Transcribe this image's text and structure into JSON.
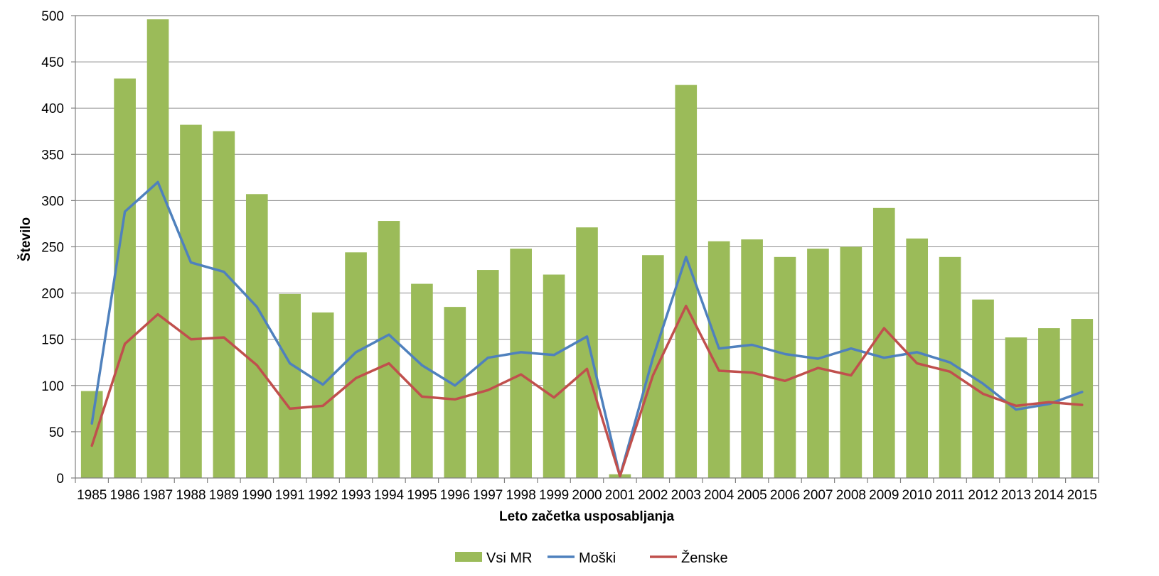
{
  "chart_data": {
    "type": "bar",
    "xlabel": "Leto začetka usposabljanja",
    "ylabel": "Število",
    "ylim": [
      0,
      500
    ],
    "yticks": [
      0,
      50,
      100,
      150,
      200,
      250,
      300,
      350,
      400,
      450,
      500
    ],
    "grid": true,
    "legend_position": "bottom",
    "categories": [
      "1985",
      "1986",
      "1987",
      "1988",
      "1989",
      "1990",
      "1991",
      "1992",
      "1993",
      "1994",
      "1995",
      "1996",
      "1997",
      "1998",
      "1999",
      "2000",
      "2001",
      "2002",
      "2003",
      "2004",
      "2005",
      "2006",
      "2007",
      "2008",
      "2009",
      "2010",
      "2011",
      "2012",
      "2013",
      "2014",
      "2015"
    ],
    "series": [
      {
        "name": "Vsi MR",
        "type": "bar",
        "color": "#9BBB59",
        "values": [
          94,
          432,
          496,
          382,
          375,
          307,
          199,
          179,
          244,
          278,
          210,
          185,
          225,
          248,
          220,
          271,
          4,
          241,
          425,
          256,
          258,
          239,
          248,
          250,
          292,
          259,
          239,
          193,
          152,
          162,
          172
        ]
      },
      {
        "name": "Moški",
        "type": "line",
        "color": "#4F81BD",
        "values": [
          59,
          288,
          320,
          233,
          223,
          185,
          124,
          101,
          136,
          155,
          122,
          100,
          130,
          136,
          133,
          153,
          2,
          130,
          239,
          140,
          144,
          134,
          129,
          140,
          130,
          136,
          125,
          102,
          74,
          80,
          93
        ]
      },
      {
        "name": "Ženske",
        "type": "line",
        "color": "#C0504D",
        "values": [
          35,
          145,
          177,
          150,
          152,
          122,
          75,
          78,
          108,
          124,
          88,
          85,
          95,
          112,
          87,
          118,
          2,
          111,
          186,
          116,
          114,
          105,
          119,
          111,
          162,
          124,
          115,
          91,
          78,
          82,
          79
        ]
      }
    ]
  }
}
